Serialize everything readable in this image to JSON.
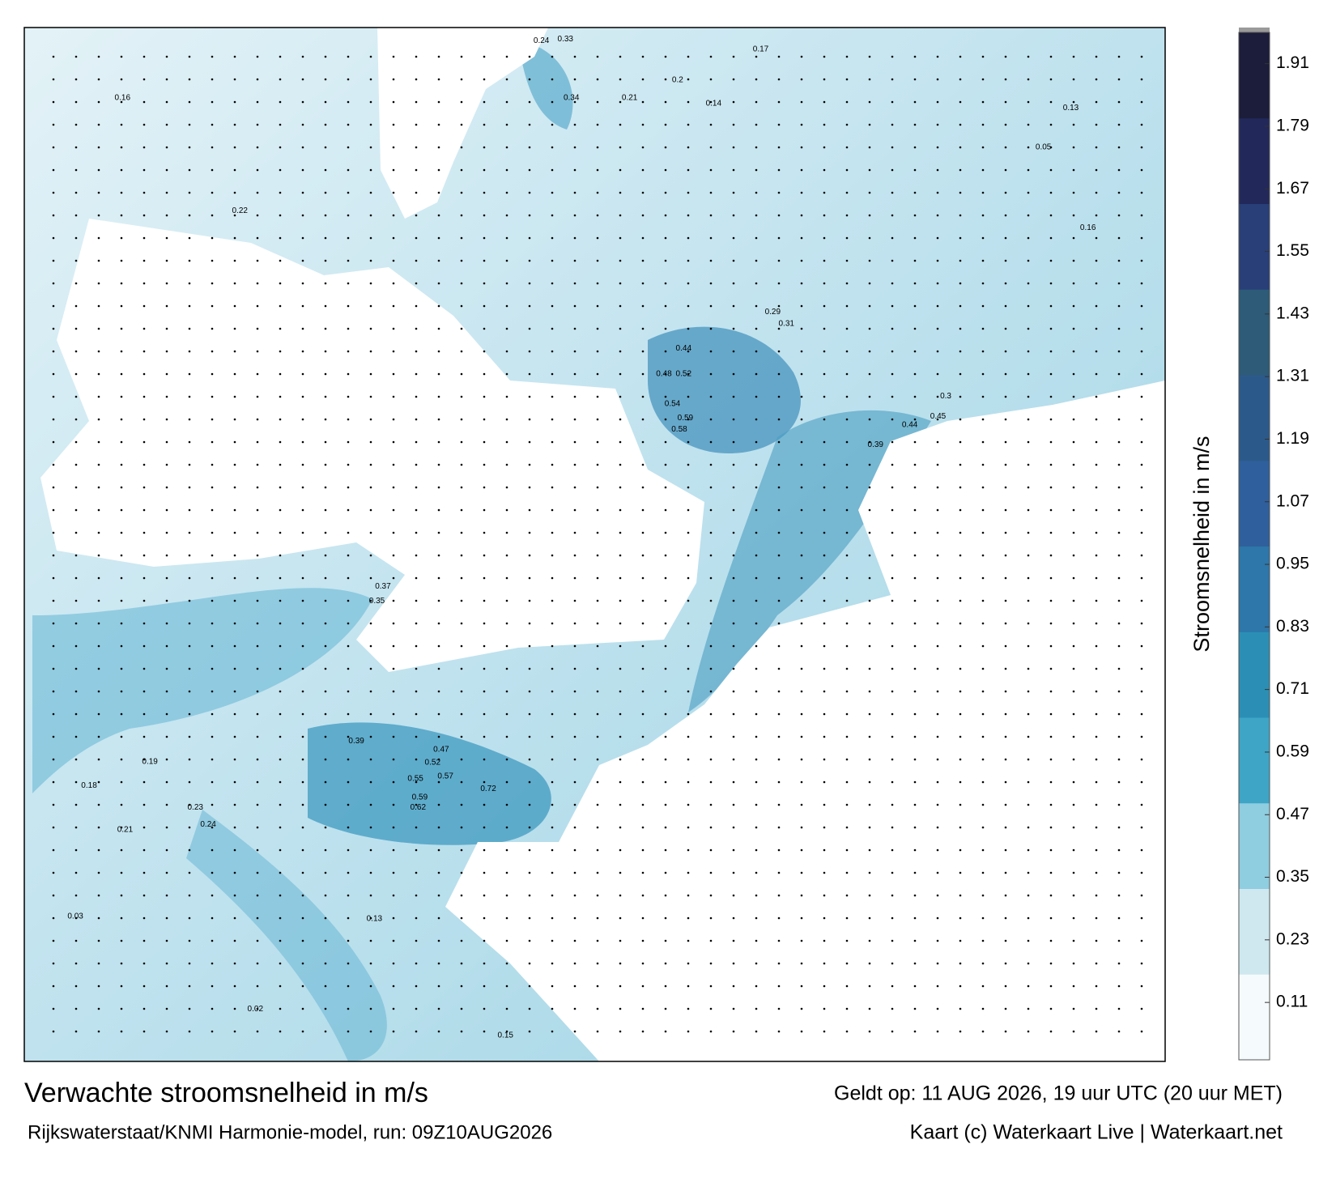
{
  "map": {
    "title": "Verwachte stroomsnelheid in m/s",
    "subtitle": "Rijkswaterstaat/KNMI Harmonie-model, run: 09Z10AUG2026",
    "valid": "Geldt op: 11 AUG 2026, 19 uur UTC (20 uur MET)",
    "credit": "Kaart (c) Waterkaart Live | Waterkaart.net",
    "current_labels": [
      "0.72",
      "0.59",
      "0.62",
      "0.57",
      "0.55",
      "0.52",
      "0.47",
      "0.54",
      "0.59",
      "0.58",
      "0.52",
      "0.48",
      "0.44",
      "0.45",
      "0.44",
      "0.39",
      "0.35",
      "0.37",
      "0.33",
      "0.34",
      "0.24",
      "0.21",
      "0.17",
      "0.2",
      "0.14",
      "0.3",
      "0.31",
      "0.29",
      "0.39",
      "0.19",
      "0.23",
      "0.24",
      "0.21",
      "0.18",
      "0.16",
      "0.22",
      "0.16",
      "0.13",
      "0.05",
      "0.03",
      "0.02",
      "0.13",
      "0.15"
    ]
  },
  "colorbar": {
    "label": "Stroomsnelheid in m/s",
    "lim": [
      0,
      1.97
    ],
    "ticks": [
      0.11,
      0.23,
      0.35,
      0.47,
      0.59,
      0.71,
      0.83,
      0.95,
      1.07,
      1.19,
      1.31,
      1.43,
      1.55,
      1.67,
      1.79,
      1.91
    ],
    "colors": [
      "#f5fafc",
      "#cfe8f0",
      "#8fcde0",
      "#3ea5c6",
      "#2b8fb5",
      "#2d77aa",
      "#2f5f9c",
      "#2b5a8a",
      "#2d5b78",
      "#283f78",
      "#22295a",
      "#1b1d3a"
    ]
  }
}
